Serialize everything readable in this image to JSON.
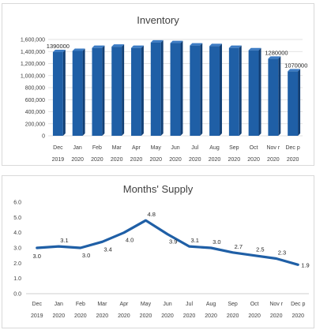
{
  "chart_data": [
    {
      "type": "bar",
      "title": "Inventory",
      "categories": [
        {
          "line1": "Dec",
          "line2": "2019"
        },
        {
          "line1": "Jan",
          "line2": "2020"
        },
        {
          "line1": "Feb",
          "line2": "2020"
        },
        {
          "line1": "Mar",
          "line2": "2020"
        },
        {
          "line1": "Apr",
          "line2": "2020"
        },
        {
          "line1": "May",
          "line2": "2020"
        },
        {
          "line1": "Jun",
          "line2": "2020"
        },
        {
          "line1": "Jul",
          "line2": "2020"
        },
        {
          "line1": "Aug",
          "line2": "2020"
        },
        {
          "line1": "Sep",
          "line2": "2020"
        },
        {
          "line1": "Oct",
          "line2": "2020"
        },
        {
          "line1": "Nov r",
          "line2": "2020"
        },
        {
          "line1": "Dec p",
          "line2": "2020"
        }
      ],
      "values": [
        1390000,
        1410000,
        1460000,
        1480000,
        1460000,
        1550000,
        1540000,
        1500000,
        1490000,
        1460000,
        1420000,
        1280000,
        1070000
      ],
      "data_labels": [
        "1390000",
        "",
        "",
        "",
        "",
        "",
        "",
        "",
        "",
        "",
        "",
        "1280000",
        "1070000"
      ],
      "yticks": [
        "0",
        "200,000",
        "400,000",
        "600,000",
        "800,000",
        "1,000,000",
        "1,200,000",
        "1,400,000",
        "1,600,000"
      ],
      "ylim": [
        0,
        1600000
      ],
      "grid": true,
      "bar_color": "#1f5fa6"
    },
    {
      "type": "line",
      "title": "Months' Supply",
      "categories": [
        {
          "line1": "Dec",
          "line2": "2019"
        },
        {
          "line1": "Jan",
          "line2": "2020"
        },
        {
          "line1": "Feb",
          "line2": "2020"
        },
        {
          "line1": "Mar",
          "line2": "2020"
        },
        {
          "line1": "Apr",
          "line2": "2020"
        },
        {
          "line1": "May",
          "line2": "2020"
        },
        {
          "line1": "Jun",
          "line2": "2020"
        },
        {
          "line1": "Jul",
          "line2": "2020"
        },
        {
          "line1": "Aug",
          "line2": "2020"
        },
        {
          "line1": "Sep",
          "line2": "2020"
        },
        {
          "line1": "Oct",
          "line2": "2020"
        },
        {
          "line1": "Nov r",
          "line2": "2020"
        },
        {
          "line1": "Dec p",
          "line2": "2020"
        }
      ],
      "values": [
        3.0,
        3.1,
        3.0,
        3.4,
        4.0,
        4.8,
        3.9,
        3.1,
        3.0,
        2.7,
        2.5,
        2.3,
        1.9
      ],
      "data_labels": [
        "3.0",
        "3.1",
        "3.0",
        "3.4",
        "4.0",
        "4.8",
        "3.9",
        "3.1",
        "3.0",
        "2.7",
        "2.5",
        "2.3",
        "1.9"
      ],
      "yticks": [
        "0.0",
        "1.0",
        "2.0",
        "3.0",
        "4.0",
        "5.0",
        "6.0"
      ],
      "ylim": [
        0,
        6
      ],
      "grid": false,
      "line_color": "#1f5fa6"
    }
  ]
}
